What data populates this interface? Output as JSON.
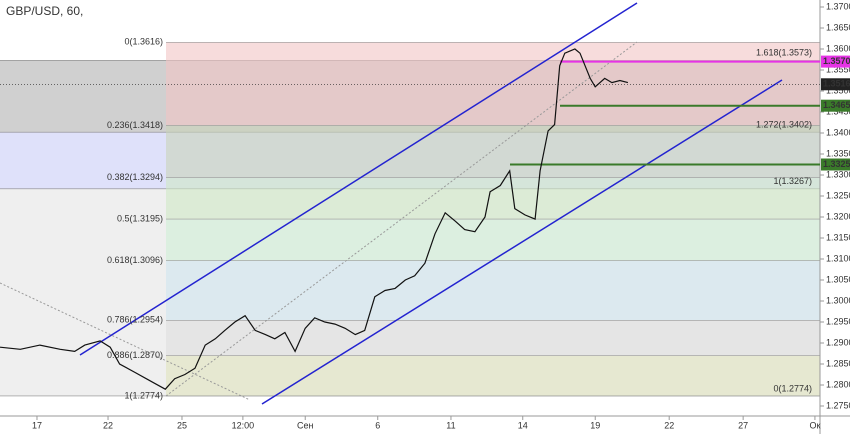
{
  "chart_data": {
    "type": "line",
    "title": "GBP/USD, 60,",
    "color": "#111111",
    "x": [
      -0.51,
      -0.23,
      0.04,
      0.32,
      0.52,
      0.66,
      0.87,
      1.01,
      1.14,
      1.35,
      1.56,
      1.77,
      1.9,
      2.04,
      2.18,
      2.32,
      2.46,
      2.59,
      2.73,
      2.87,
      3.01,
      3.15,
      3.28,
      3.42,
      3.56,
      3.7,
      3.83,
      3.97,
      4.11,
      4.25,
      4.39,
      4.52,
      4.66,
      4.8,
      4.94,
      5.08,
      5.21,
      5.35,
      5.49,
      5.63,
      5.77,
      5.9,
      6.04,
      6.18,
      6.25,
      6.39,
      6.52,
      6.59,
      6.73,
      6.87,
      6.94,
      7.05,
      7.14,
      7.21,
      7.28,
      7.42,
      7.49,
      7.56,
      7.63,
      7.7,
      7.83,
      7.93,
      8.04,
      8.15
    ],
    "values": [
      1.289,
      1.2885,
      1.2895,
      1.2885,
      1.288,
      1.2895,
      1.2905,
      1.289,
      1.285,
      1.283,
      1.281,
      1.279,
      1.2815,
      1.2825,
      1.284,
      1.2895,
      1.291,
      1.293,
      1.295,
      1.2965,
      1.293,
      1.292,
      1.291,
      1.2925,
      1.288,
      1.2935,
      1.296,
      1.295,
      1.2945,
      1.2935,
      1.292,
      1.293,
      1.301,
      1.3025,
      1.303,
      1.305,
      1.306,
      1.309,
      1.316,
      1.321,
      1.319,
      1.317,
      1.3165,
      1.32,
      1.326,
      1.3275,
      1.331,
      1.322,
      1.3205,
      1.3195,
      1.331,
      1.3405,
      1.342,
      1.356,
      1.359,
      1.36,
      1.359,
      1.356,
      1.353,
      1.351,
      1.353,
      1.352,
      1.3525,
      1.352
    ],
    "xlim": [
      -0.51,
      10.8
    ],
    "xticks": [
      {
        "value": 0,
        "label": "17"
      },
      {
        "value": 0.98,
        "label": "22"
      },
      {
        "value": 2.0,
        "label": "25"
      },
      {
        "value": 2.84,
        "label": "12:00"
      },
      {
        "value": 3.7,
        "label": "Сен"
      },
      {
        "value": 4.7,
        "label": "6"
      },
      {
        "value": 5.71,
        "label": "11"
      },
      {
        "value": 6.7,
        "label": "14"
      },
      {
        "value": 7.7,
        "label": "19"
      },
      {
        "value": 8.72,
        "label": "22"
      },
      {
        "value": 9.74,
        "label": "27"
      },
      {
        "value": 10.73,
        "label": "Ок"
      }
    ],
    "ylim": [
      1.275,
      1.37
    ],
    "yticks": [
      {
        "value": 1.275,
        "label": "1.2750"
      },
      {
        "value": 1.28,
        "label": "1.2800"
      },
      {
        "value": 1.285,
        "label": "1.2850"
      },
      {
        "value": 1.29,
        "label": "1.2900"
      },
      {
        "value": 1.295,
        "label": "1.2950"
      },
      {
        "value": 1.3,
        "label": "1.3000"
      },
      {
        "value": 1.305,
        "label": "1.3050"
      },
      {
        "value": 1.31,
        "label": "1.3100"
      },
      {
        "value": 1.315,
        "label": "1.3150"
      },
      {
        "value": 1.32,
        "label": "1.3200"
      },
      {
        "value": 1.325,
        "label": "1.3250"
      },
      {
        "value": 1.33,
        "label": "1.3300"
      },
      {
        "value": 1.335,
        "label": "1.3350"
      },
      {
        "value": 1.34,
        "label": "1.3400"
      },
      {
        "value": 1.345,
        "label": "1.3450"
      },
      {
        "value": 1.35,
        "label": "1.3500"
      },
      {
        "value": 1.355,
        "label": "1.3550"
      },
      {
        "value": 1.36,
        "label": "1.3600"
      },
      {
        "value": 1.365,
        "label": "1.3650"
      },
      {
        "value": 1.37,
        "label": "1.3700"
      }
    ],
    "fib_extension": [
      {
        "label": "1.618(1.3573)",
        "value": 1.3573,
        "color": "#b0b0b0"
      },
      {
        "label": "1.272(1.3402)",
        "value": 1.3402,
        "color": "#c9cdf7"
      },
      {
        "label": "1(1.3267)",
        "value": 1.3267,
        "color": "#e4e4e4"
      },
      {
        "label": "0(1.2774)",
        "value": 1.2774,
        "color": "#e4e4e4"
      }
    ],
    "fib_retracement": [
      {
        "label": "0(1.3616)",
        "value": 1.3616,
        "color": "#f2c4c4"
      },
      {
        "label": "0.236(1.3418)",
        "value": 1.3418,
        "color": "#c9d3b9"
      },
      {
        "label": "0.382(1.3294)",
        "value": 1.3294,
        "color": "#cfe8c4"
      },
      {
        "label": "0.5(1.3195)",
        "value": 1.3195,
        "color": "#cfeed6"
      },
      {
        "label": "0.618(1.3096)",
        "value": 1.3096,
        "color": "#cfe4ee"
      },
      {
        "label": "0.786(1.2954)",
        "value": 1.2954,
        "color": "#dddddd"
      },
      {
        "label": "0.886(1.2870)",
        "value": 1.287,
        "color": "#dfe2bc"
      },
      {
        "label": "1(1.2774)",
        "value": 1.2774,
        "color": "#dfe2bc"
      }
    ],
    "price_lines": [
      {
        "value": 1.357,
        "label": "1.3570",
        "color": "#e633e6"
      },
      {
        "value": 1.3516,
        "label": "1.3516",
        "color": "#222222"
      },
      {
        "value": 1.3465,
        "label": "1.3465",
        "color": "#3a7a2a"
      },
      {
        "value": 1.3325,
        "label": "1.3325",
        "color": "#3a7a2a"
      }
    ]
  }
}
